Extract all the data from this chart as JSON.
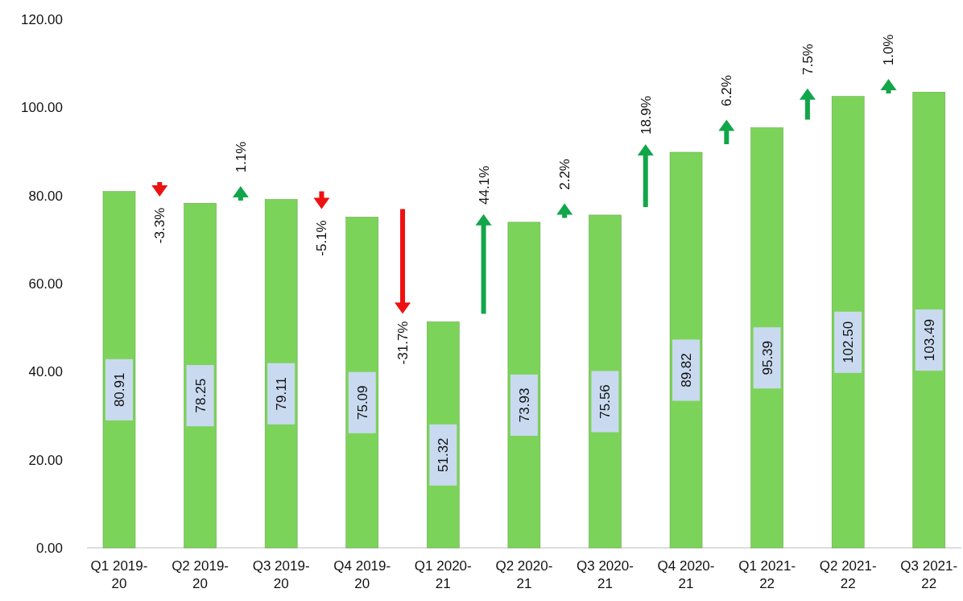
{
  "chart_data": {
    "type": "bar",
    "categories": [
      "Q1 2019-20",
      "Q2 2019-20",
      "Q3 2019-20",
      "Q4 2019-20",
      "Q1 2020-21",
      "Q2 2020-21",
      "Q3 2020-21",
      "Q4 2020-21",
      "Q1 2021-22",
      "Q2 2021-22",
      "Q3 2021-22"
    ],
    "values": [
      80.91,
      78.25,
      79.11,
      75.09,
      51.32,
      73.93,
      75.56,
      89.82,
      95.39,
      102.5,
      103.49
    ],
    "value_labels": [
      "80.91",
      "78.25",
      "79.11",
      "75.09",
      "51.32",
      "73.93",
      "75.56",
      "89.82",
      "95.39",
      "102.50",
      "103.49"
    ],
    "color": "#7cd35a",
    "ylim": [
      0,
      120
    ],
    "yticks": [
      {
        "value": 0,
        "label": "0.00"
      },
      {
        "value": 20,
        "label": "20.00"
      },
      {
        "value": 40,
        "label": "40.00"
      },
      {
        "value": 60,
        "label": "60.00"
      },
      {
        "value": 80,
        "label": "80.00"
      },
      {
        "value": 100,
        "label": "100.00"
      },
      {
        "value": 120,
        "label": "120.00"
      }
    ],
    "grid": false,
    "annotations": [
      "-3.3%",
      "1.1%",
      "-5.1%",
      "-31.7%",
      "44.1%",
      "2.2%",
      "18.9%",
      "6.2%",
      "7.5%",
      "1.0%"
    ]
  }
}
